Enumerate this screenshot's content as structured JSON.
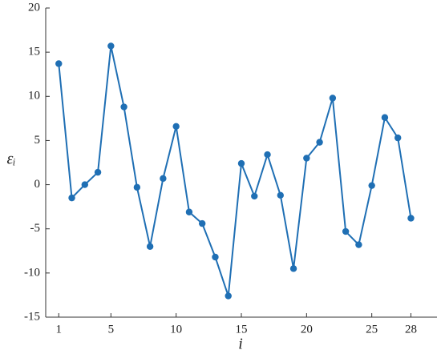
{
  "chart_data": {
    "type": "line",
    "xlabel": "i",
    "ylabel": "εᵢ",
    "x": [
      1,
      2,
      3,
      4,
      5,
      6,
      7,
      8,
      9,
      10,
      11,
      12,
      13,
      14,
      15,
      16,
      17,
      18,
      19,
      20,
      21,
      22,
      23,
      24,
      25,
      26,
      27,
      28
    ],
    "series": [
      {
        "color": "#1f6fb4",
        "values": [
          13.7,
          -1.5,
          0,
          1.4,
          15.7,
          8.8,
          -0.3,
          -7.0,
          0.7,
          6.6,
          -3.1,
          -4.4,
          -8.2,
          -12.6,
          2.4,
          -1.3,
          3.4,
          -1.2,
          -9.5,
          3.0,
          4.8,
          9.8,
          -5.3,
          -6.8,
          -0.1,
          7.6,
          5.3,
          -3.8
        ]
      }
    ],
    "xlim": [
      0,
      30
    ],
    "xticks": [
      1,
      5,
      10,
      15,
      20,
      25,
      28
    ],
    "ylim": [
      -15,
      20
    ],
    "yticks": [
      -15,
      -10,
      -5,
      0,
      5,
      10,
      15,
      20
    ]
  }
}
